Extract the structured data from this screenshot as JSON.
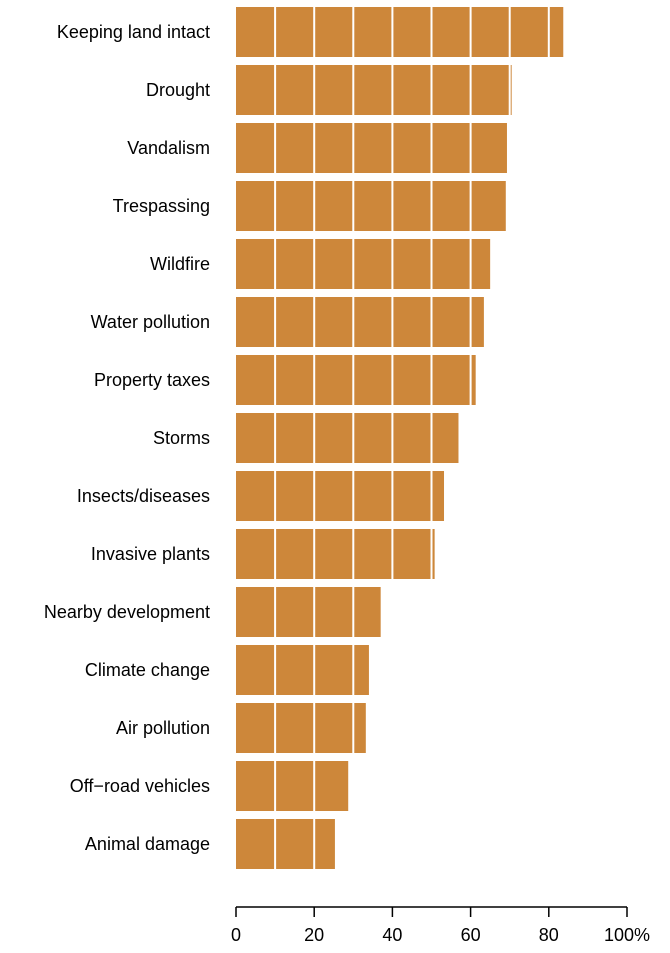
{
  "chart_data": {
    "type": "bar",
    "orientation": "horizontal",
    "categories": [
      "Keeping land intact",
      "Drought",
      "Vandalism",
      "Trespassing",
      "Wildfire",
      "Water pollution",
      "Property taxes",
      "Storms",
      "Insects/diseases",
      "Invasive plants",
      "Nearby development",
      "Climate change",
      "Air pollution",
      "Off−road vehicles",
      "Animal damage"
    ],
    "values": [
      83.7,
      70.5,
      69.3,
      69.0,
      65.0,
      63.4,
      61.3,
      56.9,
      53.2,
      50.8,
      37.0,
      34.0,
      33.2,
      28.7,
      25.3
    ],
    "xlim": [
      0,
      100
    ],
    "x_ticks": [
      0,
      20,
      40,
      60,
      80,
      100
    ],
    "x_tick_labels": [
      "0",
      "20",
      "40",
      "60",
      "80",
      "100%"
    ],
    "gridlines_every": 10,
    "grid": "white vertical lines over bars",
    "bar_color": "#cd873a",
    "grid_color": "#ffffff",
    "legend": "none"
  }
}
